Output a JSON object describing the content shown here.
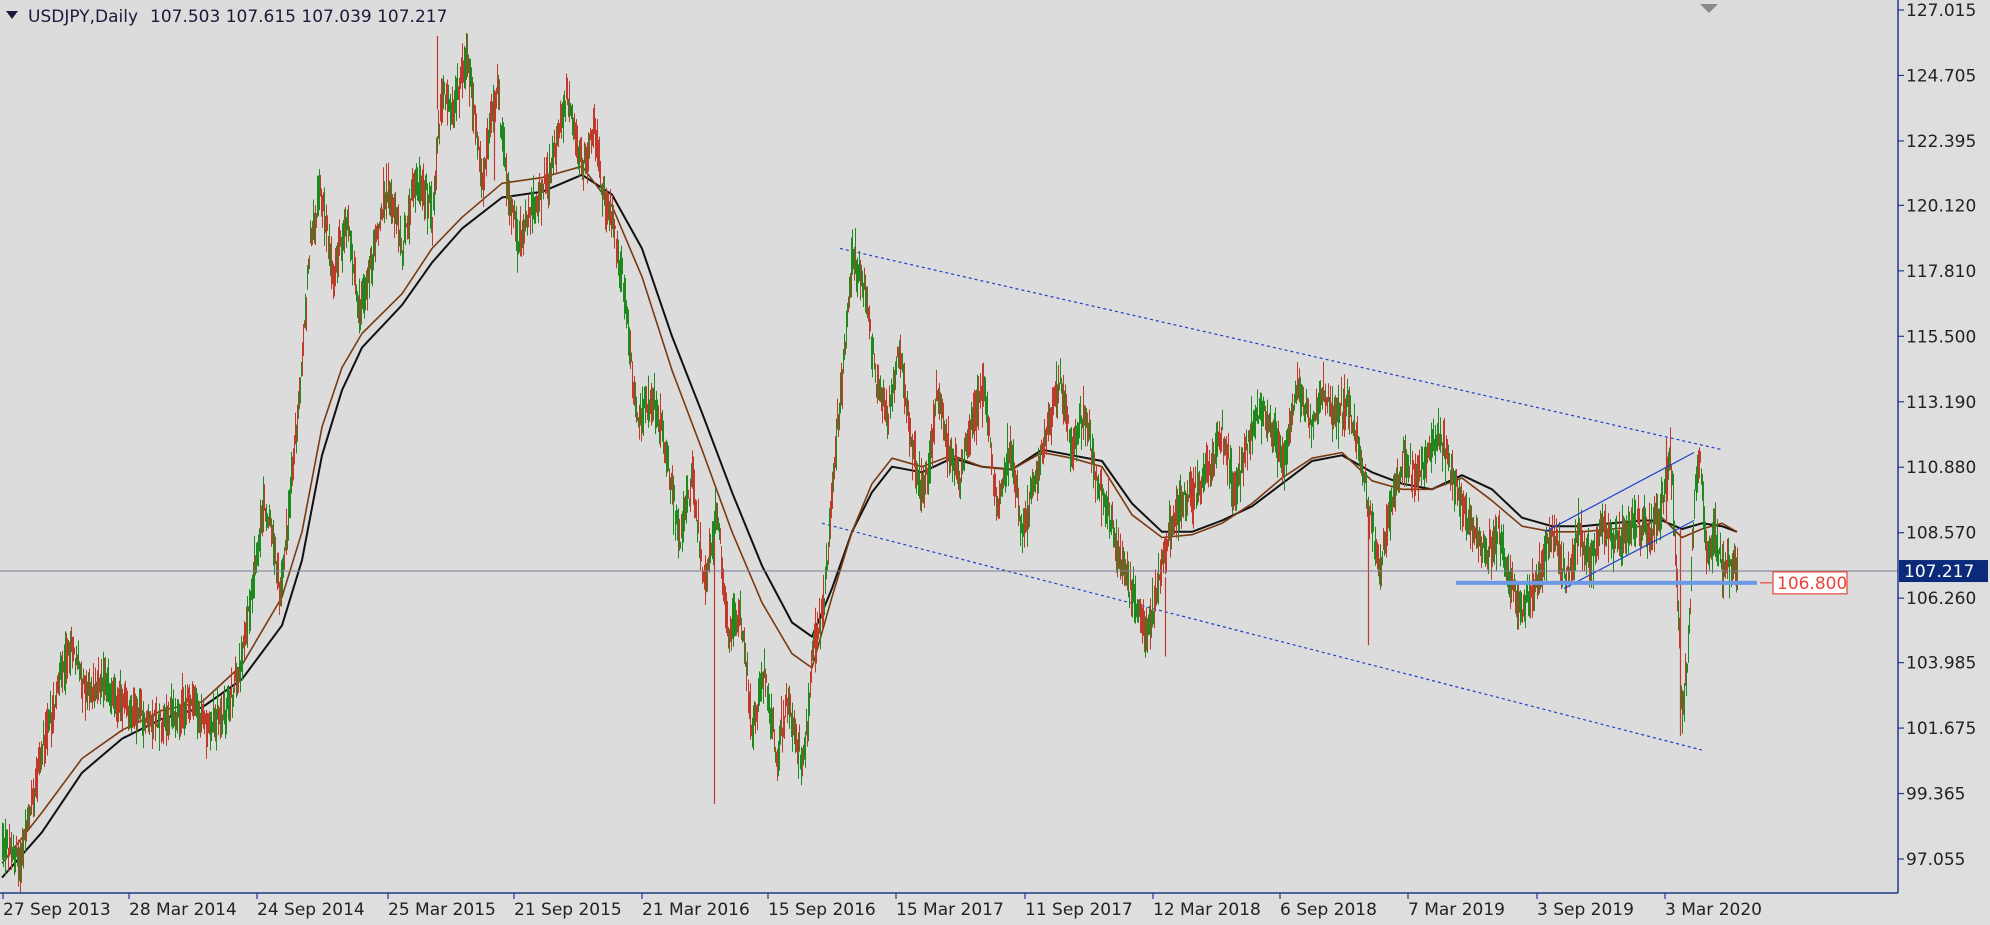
{
  "header": {
    "symbol_label": "USDJPY,Daily",
    "ohlc_label": "107.503 107.615 107.039 107.217"
  },
  "chart_data": {
    "type": "candlestick",
    "symbol": "USDJPY",
    "timeframe": "Daily",
    "ohlc": {
      "open": 107.503,
      "high": 107.615,
      "low": 107.039,
      "close": 107.217
    },
    "x_ticks": [
      "27 Sep 2013",
      "28 Mar 2014",
      "24 Sep 2014",
      "25 Mar 2015",
      "21 Sep 2015",
      "21 Mar 2016",
      "15 Sep 2016",
      "15 Mar 2017",
      "11 Sep 2017",
      "12 Mar 2018",
      "6 Sep 2018",
      "7 Mar 2019",
      "3 Sep 2019",
      "3 Mar 2020"
    ],
    "y_ticks": [
      "127.015",
      "124.705",
      "122.395",
      "120.120",
      "117.810",
      "115.500",
      "113.190",
      "110.880",
      "108.570",
      "106.260",
      "103.985",
      "101.675",
      "99.365",
      "97.055"
    ],
    "ylim": [
      96.2,
      127.0
    ],
    "current_price_label": "107.217",
    "current_price": 107.217,
    "support_level": 106.8,
    "support_label": "106.800",
    "price_path": [
      [
        0,
        97.6
      ],
      [
        18,
        96.9
      ],
      [
        35,
        100.2
      ],
      [
        55,
        103.0
      ],
      [
        70,
        104.6
      ],
      [
        85,
        102.8
      ],
      [
        100,
        103.4
      ],
      [
        115,
        102.7
      ],
      [
        130,
        102.2
      ],
      [
        150,
        101.9
      ],
      [
        170,
        102.1
      ],
      [
        190,
        102.6
      ],
      [
        205,
        101.6
      ],
      [
        225,
        102.3
      ],
      [
        240,
        104.2
      ],
      [
        252,
        107.3
      ],
      [
        262,
        109.6
      ],
      [
        270,
        108.5
      ],
      [
        278,
        106.3
      ],
      [
        288,
        109.9
      ],
      [
        298,
        113.8
      ],
      [
        308,
        118.9
      ],
      [
        318,
        120.6
      ],
      [
        330,
        117.8
      ],
      [
        345,
        119.4
      ],
      [
        358,
        116.3
      ],
      [
        372,
        118.6
      ],
      [
        385,
        120.9
      ],
      [
        400,
        118.7
      ],
      [
        415,
        121.2
      ],
      [
        430,
        119.8
      ],
      [
        440,
        124.2
      ],
      [
        450,
        123.4
      ],
      [
        465,
        125.4
      ],
      [
        480,
        121.0
      ],
      [
        495,
        124.3
      ],
      [
        505,
        120.7
      ],
      [
        515,
        118.8
      ],
      [
        528,
        119.9
      ],
      [
        540,
        120.5
      ],
      [
        552,
        121.8
      ],
      [
        565,
        124.1
      ],
      [
        580,
        121.4
      ],
      [
        592,
        122.9
      ],
      [
        600,
        120.6
      ],
      [
        612,
        119.5
      ],
      [
        622,
        117.0
      ],
      [
        635,
        112.5
      ],
      [
        650,
        113.5
      ],
      [
        665,
        111.1
      ],
      [
        678,
        108.2
      ],
      [
        690,
        110.6
      ],
      [
        702,
        106.7
      ],
      [
        715,
        109.3
      ],
      [
        726,
        104.9
      ],
      [
        738,
        105.9
      ],
      [
        750,
        101.4
      ],
      [
        762,
        103.8
      ],
      [
        774,
        100.8
      ],
      [
        786,
        102.5
      ],
      [
        800,
        100.2
      ],
      [
        812,
        104.6
      ],
      [
        822,
        106.3
      ],
      [
        830,
        110.2
      ],
      [
        840,
        114.0
      ],
      [
        850,
        118.4
      ],
      [
        862,
        117.2
      ],
      [
        872,
        114.4
      ],
      [
        885,
        112.7
      ],
      [
        897,
        115.0
      ],
      [
        910,
        111.4
      ],
      [
        922,
        109.9
      ],
      [
        935,
        113.5
      ],
      [
        945,
        111.6
      ],
      [
        958,
        110.6
      ],
      [
        970,
        112.4
      ],
      [
        982,
        113.8
      ],
      [
        995,
        109.3
      ],
      [
        1008,
        111.7
      ],
      [
        1020,
        108.6
      ],
      [
        1032,
        110.3
      ],
      [
        1045,
        112.2
      ],
      [
        1058,
        114.0
      ],
      [
        1070,
        111.3
      ],
      [
        1082,
        112.8
      ],
      [
        1095,
        110.4
      ],
      [
        1108,
        109.2
      ],
      [
        1120,
        107.2
      ],
      [
        1132,
        106.3
      ],
      [
        1145,
        104.9
      ],
      [
        1158,
        107.1
      ],
      [
        1170,
        109.0
      ],
      [
        1182,
        109.8
      ],
      [
        1196,
        110.1
      ],
      [
        1208,
        111.0
      ],
      [
        1220,
        112.1
      ],
      [
        1232,
        109.9
      ],
      [
        1245,
        111.6
      ],
      [
        1258,
        113.1
      ],
      [
        1270,
        112.2
      ],
      [
        1282,
        111.0
      ],
      [
        1295,
        113.9
      ],
      [
        1308,
        112.4
      ],
      [
        1320,
        113.6
      ],
      [
        1332,
        112.6
      ],
      [
        1345,
        113.1
      ],
      [
        1358,
        111.5
      ],
      [
        1368,
        109.0
      ],
      [
        1378,
        107.5
      ],
      [
        1390,
        109.6
      ],
      [
        1402,
        111.3
      ],
      [
        1414,
        110.5
      ],
      [
        1426,
        111.4
      ],
      [
        1438,
        112.0
      ],
      [
        1450,
        110.6
      ],
      [
        1460,
        109.5
      ],
      [
        1472,
        108.6
      ],
      [
        1484,
        107.6
      ],
      [
        1496,
        108.4
      ],
      [
        1508,
        106.8
      ],
      [
        1520,
        105.7
      ],
      [
        1530,
        106.5
      ],
      [
        1540,
        107.4
      ],
      [
        1552,
        108.6
      ],
      [
        1564,
        106.9
      ],
      [
        1576,
        108.6
      ],
      [
        1588,
        107.6
      ],
      [
        1600,
        108.8
      ],
      [
        1612,
        108.1
      ],
      [
        1624,
        108.6
      ],
      [
        1636,
        109.0
      ],
      [
        1648,
        108.4
      ],
      [
        1660,
        109.5
      ],
      [
        1668,
        111.5
      ],
      [
        1674,
        107.3
      ],
      [
        1680,
        102.0
      ],
      [
        1686,
        104.5
      ],
      [
        1692,
        109.6
      ],
      [
        1698,
        111.4
      ],
      [
        1704,
        107.7
      ],
      [
        1712,
        108.6
      ],
      [
        1720,
        107.2
      ],
      [
        1728,
        107.5
      ],
      [
        1735,
        107.2
      ]
    ],
    "ma_fast": [
      [
        0,
        96.9
      ],
      [
        40,
        98.7
      ],
      [
        80,
        100.6
      ],
      [
        120,
        101.6
      ],
      [
        160,
        102.3
      ],
      [
        200,
        102.6
      ],
      [
        240,
        103.9
      ],
      [
        280,
        106.3
      ],
      [
        300,
        108.6
      ],
      [
        320,
        112.3
      ],
      [
        340,
        114.4
      ],
      [
        360,
        115.6
      ],
      [
        400,
        117.0
      ],
      [
        430,
        118.6
      ],
      [
        460,
        119.7
      ],
      [
        500,
        120.9
      ],
      [
        540,
        121.1
      ],
      [
        580,
        121.5
      ],
      [
        610,
        120.1
      ],
      [
        640,
        117.6
      ],
      [
        670,
        114.3
      ],
      [
        700,
        111.5
      ],
      [
        730,
        108.6
      ],
      [
        760,
        106.1
      ],
      [
        790,
        104.3
      ],
      [
        810,
        103.8
      ],
      [
        830,
        106.3
      ],
      [
        850,
        108.6
      ],
      [
        870,
        110.3
      ],
      [
        890,
        111.2
      ],
      [
        920,
        110.9
      ],
      [
        950,
        111.3
      ],
      [
        980,
        110.9
      ],
      [
        1010,
        110.8
      ],
      [
        1040,
        111.4
      ],
      [
        1070,
        111.2
      ],
      [
        1100,
        110.9
      ],
      [
        1130,
        109.2
      ],
      [
        1160,
        108.4
      ],
      [
        1190,
        108.5
      ],
      [
        1220,
        108.9
      ],
      [
        1250,
        109.6
      ],
      [
        1280,
        110.5
      ],
      [
        1310,
        111.2
      ],
      [
        1340,
        111.4
      ],
      [
        1370,
        110.4
      ],
      [
        1400,
        110.1
      ],
      [
        1430,
        110.1
      ],
      [
        1460,
        110.5
      ],
      [
        1490,
        109.7
      ],
      [
        1520,
        108.8
      ],
      [
        1550,
        108.6
      ],
      [
        1580,
        108.6
      ],
      [
        1610,
        108.7
      ],
      [
        1640,
        108.8
      ],
      [
        1660,
        109.1
      ],
      [
        1680,
        108.4
      ],
      [
        1700,
        108.7
      ],
      [
        1720,
        108.9
      ],
      [
        1735,
        108.6
      ]
    ],
    "ma_slow": [
      [
        0,
        96.4
      ],
      [
        40,
        98.0
      ],
      [
        80,
        100.1
      ],
      [
        120,
        101.3
      ],
      [
        160,
        102.0
      ],
      [
        200,
        102.4
      ],
      [
        240,
        103.4
      ],
      [
        280,
        105.3
      ],
      [
        300,
        107.6
      ],
      [
        320,
        111.3
      ],
      [
        340,
        113.6
      ],
      [
        360,
        115.1
      ],
      [
        400,
        116.6
      ],
      [
        430,
        118.1
      ],
      [
        460,
        119.3
      ],
      [
        500,
        120.4
      ],
      [
        540,
        120.6
      ],
      [
        580,
        121.2
      ],
      [
        610,
        120.5
      ],
      [
        640,
        118.6
      ],
      [
        670,
        115.5
      ],
      [
        700,
        112.8
      ],
      [
        730,
        110.0
      ],
      [
        760,
        107.4
      ],
      [
        790,
        105.4
      ],
      [
        810,
        104.9
      ],
      [
        830,
        106.6
      ],
      [
        850,
        108.6
      ],
      [
        870,
        110.0
      ],
      [
        890,
        110.9
      ],
      [
        920,
        110.7
      ],
      [
        950,
        111.2
      ],
      [
        980,
        110.9
      ],
      [
        1010,
        110.8
      ],
      [
        1040,
        111.5
      ],
      [
        1070,
        111.3
      ],
      [
        1100,
        111.1
      ],
      [
        1130,
        109.6
      ],
      [
        1160,
        108.6
      ],
      [
        1190,
        108.6
      ],
      [
        1220,
        109.0
      ],
      [
        1250,
        109.5
      ],
      [
        1280,
        110.3
      ],
      [
        1310,
        111.1
      ],
      [
        1340,
        111.3
      ],
      [
        1370,
        110.7
      ],
      [
        1400,
        110.3
      ],
      [
        1430,
        110.1
      ],
      [
        1460,
        110.6
      ],
      [
        1490,
        110.1
      ],
      [
        1520,
        109.1
      ],
      [
        1550,
        108.8
      ],
      [
        1580,
        108.8
      ],
      [
        1610,
        108.9
      ],
      [
        1640,
        109.0
      ],
      [
        1660,
        109.0
      ],
      [
        1680,
        108.7
      ],
      [
        1700,
        108.9
      ],
      [
        1720,
        108.8
      ],
      [
        1735,
        108.6
      ]
    ],
    "channel_upper": [
      [
        838,
        118.6
      ],
      [
        1720,
        111.5
      ]
    ],
    "channel_lower": [
      [
        820,
        108.9
      ],
      [
        1700,
        100.9
      ]
    ],
    "rising_upper": [
      [
        1543,
        108.6
      ],
      [
        1692,
        111.4
      ]
    ],
    "rising_lower": [
      [
        1562,
        106.6
      ],
      [
        1692,
        109.0
      ]
    ],
    "colors": {
      "background": "#dcdcdc",
      "axis": "#1f3a8a",
      "bull_candle": "#1e8a1e",
      "bear_candle": "#c0392b",
      "ma_fast": "#7a3a10",
      "ma_slow": "#111111",
      "trendline": "#1f3fcc",
      "support": "#6a9ae6",
      "price_badge_bg": "#0b2a7a",
      "support_badge": "#e8443a"
    }
  }
}
